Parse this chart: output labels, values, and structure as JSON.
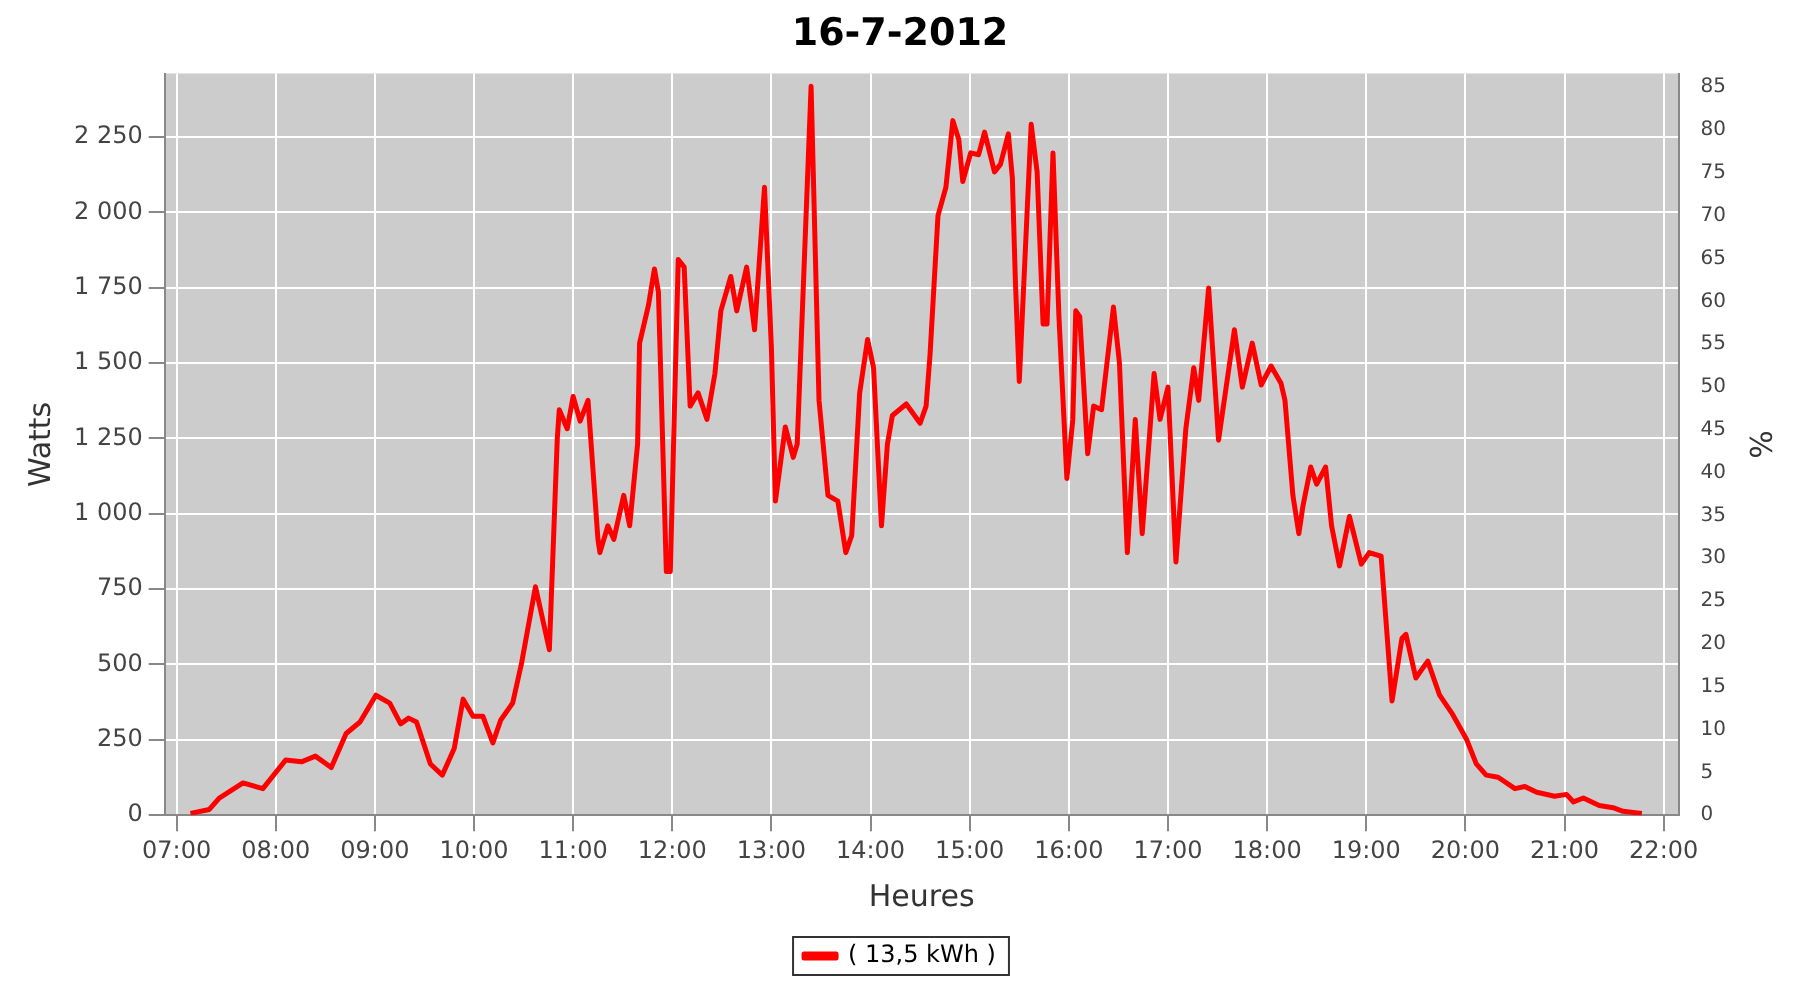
{
  "chart_data": {
    "type": "line",
    "title": "16-7-2012",
    "xlabel": "Heures",
    "ylabel": "Watts",
    "y2label": "%",
    "xlim": [
      6.88,
      22.15
    ],
    "xticks": [
      {
        "value": 7,
        "label": "07:00"
      },
      {
        "value": 8,
        "label": "08:00"
      },
      {
        "value": 9,
        "label": "09:00"
      },
      {
        "value": 10,
        "label": "10:00"
      },
      {
        "value": 11,
        "label": "11:00"
      },
      {
        "value": 12,
        "label": "12:00"
      },
      {
        "value": 13,
        "label": "13:00"
      },
      {
        "value": 14,
        "label": "14:00"
      },
      {
        "value": 15,
        "label": "15:00"
      },
      {
        "value": 16,
        "label": "16:00"
      },
      {
        "value": 17,
        "label": "17:00"
      },
      {
        "value": 18,
        "label": "18:00"
      },
      {
        "value": 19,
        "label": "19:00"
      },
      {
        "value": 20,
        "label": "20:00"
      },
      {
        "value": 21,
        "label": "21:00"
      },
      {
        "value": 22,
        "label": "22:00"
      }
    ],
    "ylim": [
      0,
      2460
    ],
    "yticks": [
      0,
      250,
      500,
      750,
      {
        "value": 1000,
        "label": "1 000"
      },
      {
        "value": 1250,
        "label": "1 250"
      },
      {
        "value": 1500,
        "label": "1 500"
      },
      {
        "value": 1750,
        "label": "1 750"
      },
      {
        "value": 2000,
        "label": "2 000"
      },
      {
        "value": 2250,
        "label": "2 250"
      }
    ],
    "y2lim": [
      0,
      86.6
    ],
    "y2ticks": [
      0,
      5,
      10,
      15,
      20,
      25,
      30,
      35,
      40,
      45,
      50,
      55,
      60,
      65,
      70,
      75,
      80,
      85
    ],
    "grid": true,
    "legend": "bottom",
    "marker": "none",
    "line_style": "solid",
    "series": [
      {
        "name": "( 13,5 kWh )",
        "color": "#ff0000",
        "x": [
          7.14,
          7.33,
          7.43,
          7.67,
          7.87,
          8.1,
          8.26,
          8.4,
          8.56,
          8.71,
          8.85,
          9.01,
          9.15,
          9.26,
          9.34,
          9.42,
          9.56,
          9.68,
          9.8,
          9.89,
          9.99,
          10.09,
          10.19,
          10.27,
          10.39,
          10.48,
          10.62,
          10.76,
          10.84,
          10.86,
          10.94,
          11.0,
          11.07,
          11.15,
          11.25,
          11.27,
          11.35,
          11.41,
          11.51,
          11.57,
          11.65,
          11.67,
          11.76,
          11.82,
          11.86,
          11.94,
          11.98,
          12.06,
          12.12,
          12.18,
          12.26,
          12.35,
          12.43,
          12.49,
          12.59,
          12.65,
          12.75,
          12.83,
          12.93,
          13.0,
          13.04,
          13.14,
          13.22,
          13.26,
          13.4,
          13.48,
          13.57,
          13.67,
          13.75,
          13.81,
          13.89,
          13.97,
          14.03,
          14.11,
          14.17,
          14.22,
          14.36,
          14.5,
          14.56,
          14.6,
          14.68,
          14.76,
          14.83,
          14.89,
          14.93,
          15.01,
          15.09,
          15.15,
          15.25,
          15.31,
          15.39,
          15.43,
          15.46,
          15.5,
          15.62,
          15.68,
          15.74,
          15.78,
          15.84,
          15.9,
          15.98,
          16.04,
          16.07,
          16.11,
          16.19,
          16.25,
          16.33,
          16.45,
          16.51,
          16.59,
          16.67,
          16.74,
          16.86,
          16.92,
          17.0,
          17.08,
          17.18,
          17.26,
          17.31,
          17.41,
          17.51,
          17.67,
          17.75,
          17.85,
          17.94,
          18.04,
          18.14,
          18.18,
          18.26,
          18.32,
          18.36,
          18.44,
          18.5,
          18.59,
          18.65,
          18.73,
          18.83,
          18.95,
          19.03,
          19.15,
          19.26,
          19.36,
          19.4,
          19.5,
          19.62,
          19.74,
          19.87,
          20.01,
          20.11,
          20.21,
          20.33,
          20.5,
          20.6,
          20.72,
          20.9,
          21.02,
          21.09,
          21.19,
          21.35,
          21.49,
          21.59,
          21.78
        ],
        "values": [
          6,
          19,
          57,
          107,
          88,
          183,
          177,
          196,
          158,
          271,
          309,
          398,
          372,
          303,
          322,
          309,
          170,
          133,
          221,
          385,
          328,
          328,
          240,
          316,
          372,
          505,
          758,
          549,
          1250,
          1345,
          1282,
          1389,
          1307,
          1376,
          915,
          871,
          960,
          915,
          1061,
          960,
          1231,
          1566,
          1692,
          1812,
          1736,
          808,
          808,
          1843,
          1818,
          1357,
          1401,
          1313,
          1465,
          1673,
          1787,
          1673,
          1818,
          1610,
          2083,
          1547,
          1042,
          1288,
          1187,
          1231,
          2418,
          1376,
          1061,
          1042,
          871,
          928,
          1401,
          1578,
          1484,
          960,
          1231,
          1326,
          1364,
          1300,
          1357,
          1528,
          1989,
          2083,
          2304,
          2241,
          2102,
          2197,
          2191,
          2266,
          2134,
          2159,
          2260,
          2115,
          1780,
          1439,
          2292,
          2134,
          1629,
          1629,
          2197,
          1654,
          1117,
          1313,
          1673,
          1654,
          1199,
          1357,
          1345,
          1686,
          1502,
          871,
          1313,
          934,
          1465,
          1313,
          1420,
          840,
          1282,
          1484,
          1376,
          1749,
          1244,
          1610,
          1420,
          1566,
          1427,
          1490,
          1433,
          1376,
          1061,
          934,
          1023,
          1155,
          1098,
          1155,
          960,
          827,
          991,
          833,
          871,
          859,
          379,
          587,
          600,
          455,
          511,
          398,
          335,
          253,
          170,
          133,
          126,
          88,
          95,
          76,
          63,
          69,
          44,
          57,
          32,
          25,
          13,
          6
        ]
      }
    ]
  }
}
